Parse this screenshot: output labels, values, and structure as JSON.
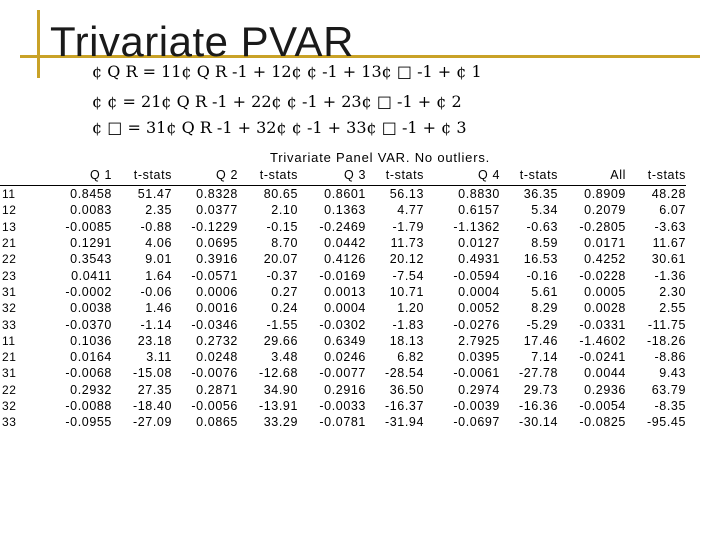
{
  "title": "Trivariate PVAR",
  "equations": [
    "¢ Q R  = 11¢ Q R -1 + 12¢ ¢ -1 + 13¢ □ -1 + ¢ 1",
    "¢ ¢  = 21¢ Q R -1 + 22¢ ¢ -1 + 23¢ □ -1 + ¢ 2",
    "¢ □  = 31¢ Q R -1 + 32¢ ¢ -1 + 33¢ □ -1 + ¢ 3"
  ],
  "caption": "Trivariate Panel VAR. No outliers.",
  "table": {
    "headers": [
      "",
      "Q 1",
      "t-stats",
      "Q 2",
      "t-stats",
      "Q 3",
      "t-stats",
      "Q 4",
      "t-stats",
      "All",
      "t-stats"
    ],
    "rows": [
      [
        "11",
        "0.8458",
        "51.47",
        "0.8328",
        "80.65",
        "0.8601",
        "56.13",
        "0.8830",
        "36.35",
        "0.8909",
        "48.28"
      ],
      [
        "12",
        "0.0083",
        "2.35",
        "0.0377",
        "2.10",
        "0.1363",
        "4.77",
        "0.6157",
        "5.34",
        "0.2079",
        "6.07"
      ],
      [
        "13",
        "-0.0085",
        "-0.88",
        "-0.1229",
        "-0.15",
        "-0.2469",
        "-1.79",
        "-1.1362",
        "-0.63",
        "-0.2805",
        "-3.63"
      ],
      [
        "21",
        "0.1291",
        "4.06",
        "0.0695",
        "8.70",
        "0.0442",
        "11.73",
        "0.0127",
        "8.59",
        "0.0171",
        "11.67"
      ],
      [
        "22",
        "0.3543",
        "9.01",
        "0.3916",
        "20.07",
        "0.4126",
        "20.12",
        "0.4931",
        "16.53",
        "0.4252",
        "30.61"
      ],
      [
        "23",
        "0.0411",
        "1.64",
        "-0.0571",
        "-0.37",
        "-0.0169",
        "-7.54",
        "-0.0594",
        "-0.16",
        "-0.0228",
        "-1.36"
      ],
      [
        "31",
        "-0.0002",
        "-0.06",
        "0.0006",
        "0.27",
        "0.0013",
        "10.71",
        "0.0004",
        "5.61",
        "0.0005",
        "2.30"
      ],
      [
        "32",
        "0.0038",
        "1.46",
        "0.0016",
        "0.24",
        "0.0004",
        "1.20",
        "0.0052",
        "8.29",
        "0.0028",
        "2.55"
      ],
      [
        "33",
        "-0.0370",
        "-1.14",
        "-0.0346",
        "-1.55",
        "-0.0302",
        "-1.83",
        "-0.0276",
        "-5.29",
        "-0.0331",
        "-11.75"
      ],
      [
        "11",
        "0.1036",
        "23.18",
        "0.2732",
        "29.66",
        "0.6349",
        "18.13",
        "2.7925",
        "17.46",
        "-1.4602",
        "-18.26"
      ],
      [
        "21",
        "0.0164",
        "3.11",
        "0.0248",
        "3.48",
        "0.0246",
        "6.82",
        "0.0395",
        "7.14",
        "-0.0241",
        "-8.86"
      ],
      [
        "31",
        "-0.0068",
        "-15.08",
        "-0.0076",
        "-12.68",
        "-0.0077",
        "-28.54",
        "-0.0061",
        "-27.78",
        "0.0044",
        "9.43"
      ],
      [
        "22",
        "0.2932",
        "27.35",
        "0.2871",
        "34.90",
        "0.2916",
        "36.50",
        "0.2974",
        "29.73",
        "0.2936",
        "63.79"
      ],
      [
        "32",
        "-0.0088",
        "-18.40",
        "-0.0056",
        "-13.91",
        "-0.0033",
        "-16.37",
        "-0.0039",
        "-16.36",
        "-0.0054",
        "-8.35"
      ],
      [
        "33",
        "-0.0955",
        "-27.09",
        "0.0865",
        "33.29",
        "-0.0781",
        "-31.94",
        "-0.0697",
        "-30.14",
        "-0.0825",
        "-95.45"
      ]
    ]
  }
}
